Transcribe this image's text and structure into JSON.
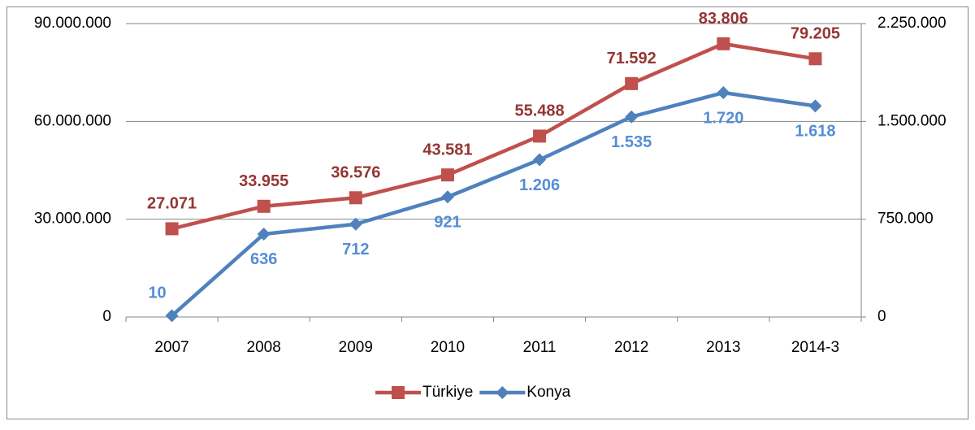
{
  "chart_data": {
    "type": "line",
    "categories": [
      "2007",
      "2008",
      "2009",
      "2010",
      "2011",
      "2012",
      "2013",
      "2014-3"
    ],
    "series": [
      {
        "name": "Türkiye",
        "color": "#c0504d",
        "label_color": "#943634",
        "values": [
          27071000,
          33955000,
          36576000,
          43581000,
          55488000,
          71592000,
          83806000,
          79205000
        ],
        "value_labels": [
          "27.071",
          "33.955",
          "36.576",
          "43.581",
          "55.488",
          "71.592",
          "83.806",
          "79.205"
        ]
      },
      {
        "name": "Konya",
        "color": "#4f81bd",
        "label_color": "#558ed5",
        "axis": "y2",
        "values": [
          10000,
          636000,
          712000,
          921000,
          1206000,
          1535000,
          1720000,
          1618000
        ],
        "value_labels": [
          "10",
          "636",
          "712",
          "921",
          "1.206",
          "1.535",
          "1.720",
          "1.618"
        ]
      }
    ],
    "ylim": [
      0,
      90000000
    ],
    "yticks": [
      0,
      {
        "value": 30000000,
        "label": "30.000.000"
      },
      {
        "value": 60000000,
        "label": "60.000.000"
      },
      {
        "value": 90000000,
        "label": "90.000.000"
      }
    ],
    "y2lim": [
      0,
      2250000
    ],
    "y2ticks": [
      0,
      {
        "value": 750000,
        "label": "750.000"
      },
      {
        "value": 1500000,
        "label": "1.500.000"
      },
      {
        "value": 2250000,
        "label": "2.250.000"
      }
    ],
    "grid": true,
    "legend": "bottom"
  }
}
